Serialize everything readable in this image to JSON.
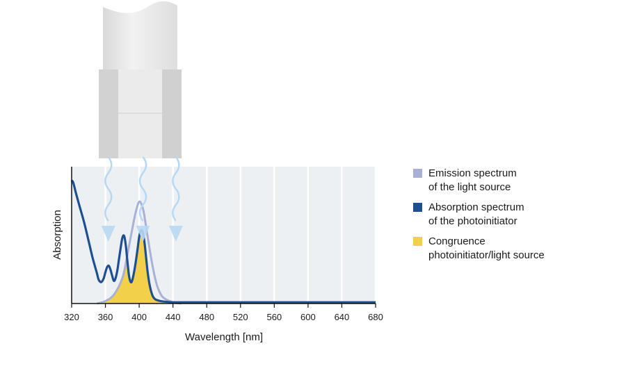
{
  "chart_data": {
    "type": "line",
    "xlabel": "Wavelength [nm]",
    "ylabel": "Absorption",
    "xlim": [
      320,
      680
    ],
    "ylim": [
      0,
      1
    ],
    "x_ticks": [
      320,
      360,
      400,
      440,
      480,
      520,
      560,
      600,
      640,
      680
    ],
    "grid": true,
    "legend_position": "right",
    "light_arrows_at_nm": [
      361,
      402,
      441
    ],
    "series": [
      {
        "name": "Emission spectrum of the light source",
        "color": "#a9b0d6",
        "x": [
          350,
          360,
          370,
          380,
          385,
          390,
          395,
          398,
          400,
          402,
          405,
          408,
          410,
          415,
          420,
          425,
          430,
          440,
          450
        ],
        "y": [
          0,
          0.02,
          0.07,
          0.2,
          0.35,
          0.53,
          0.7,
          0.78,
          0.81,
          0.8,
          0.74,
          0.62,
          0.53,
          0.33,
          0.17,
          0.08,
          0.04,
          0.01,
          0
        ]
      },
      {
        "name": "Absorption spectrum of the photoinitiator",
        "color": "#1d4f91",
        "x": [
          320,
          322,
          325,
          330,
          335,
          340,
          345,
          350,
          352,
          355,
          358,
          360,
          362,
          364,
          366,
          368,
          370,
          372,
          374,
          376,
          378,
          380,
          382,
          384,
          386,
          388,
          390,
          392,
          395,
          398,
          400,
          402,
          404,
          406,
          408,
          410,
          412,
          414,
          416,
          418,
          420,
          425,
          430,
          440,
          460,
          500,
          560,
          620,
          680
        ],
        "y": [
          0.98,
          0.96,
          0.88,
          0.76,
          0.64,
          0.5,
          0.36,
          0.24,
          0.19,
          0.17,
          0.2,
          0.25,
          0.29,
          0.3,
          0.27,
          0.22,
          0.18,
          0.2,
          0.26,
          0.35,
          0.44,
          0.52,
          0.54,
          0.47,
          0.34,
          0.22,
          0.17,
          0.19,
          0.29,
          0.43,
          0.53,
          0.58,
          0.57,
          0.5,
          0.38,
          0.25,
          0.16,
          0.1,
          0.06,
          0.04,
          0.03,
          0.02,
          0.015,
          0.01,
          0.01,
          0.01,
          0.01,
          0.01,
          0.01
        ]
      },
      {
        "name": "Congruence photoinitiator/light source",
        "color": "#f2d04a",
        "x": [
          350,
          355,
          358,
          360,
          362,
          364,
          366,
          368,
          370,
          372,
          374,
          376,
          378,
          380,
          382,
          384,
          386,
          388,
          390,
          392,
          395,
          398,
          400,
          402,
          404,
          406,
          408,
          410,
          412,
          414,
          416,
          418,
          420,
          425,
          430
        ],
        "y": [
          0,
          0.01,
          0.018,
          0.02,
          0.03,
          0.04,
          0.05,
          0.06,
          0.07,
          0.09,
          0.12,
          0.15,
          0.18,
          0.2,
          0.25,
          0.31,
          0.34,
          0.22,
          0.17,
          0.19,
          0.29,
          0.43,
          0.53,
          0.58,
          0.57,
          0.5,
          0.38,
          0.25,
          0.16,
          0.1,
          0.06,
          0.04,
          0.03,
          0.02,
          0
        ]
      }
    ]
  },
  "legend": [
    {
      "lines": [
        "Emission spectrum",
        "of the light source"
      ],
      "color": "#a9b0d6"
    },
    {
      "lines": [
        "Absorption spectrum",
        "of the photoinitiator"
      ],
      "color": "#1d4f91"
    },
    {
      "lines": [
        "Congruence",
        "photoinitiator/light source"
      ],
      "color": "#f2d04a"
    }
  ],
  "colors": {
    "plot_background": "#edf0f3",
    "grid": "#ffffff",
    "arrow": "#b7d8f2",
    "lamp_light": "#ececec",
    "lamp_dark": "#d6d6d6"
  },
  "illustration": {
    "icon": "uv-lamp-icon"
  }
}
